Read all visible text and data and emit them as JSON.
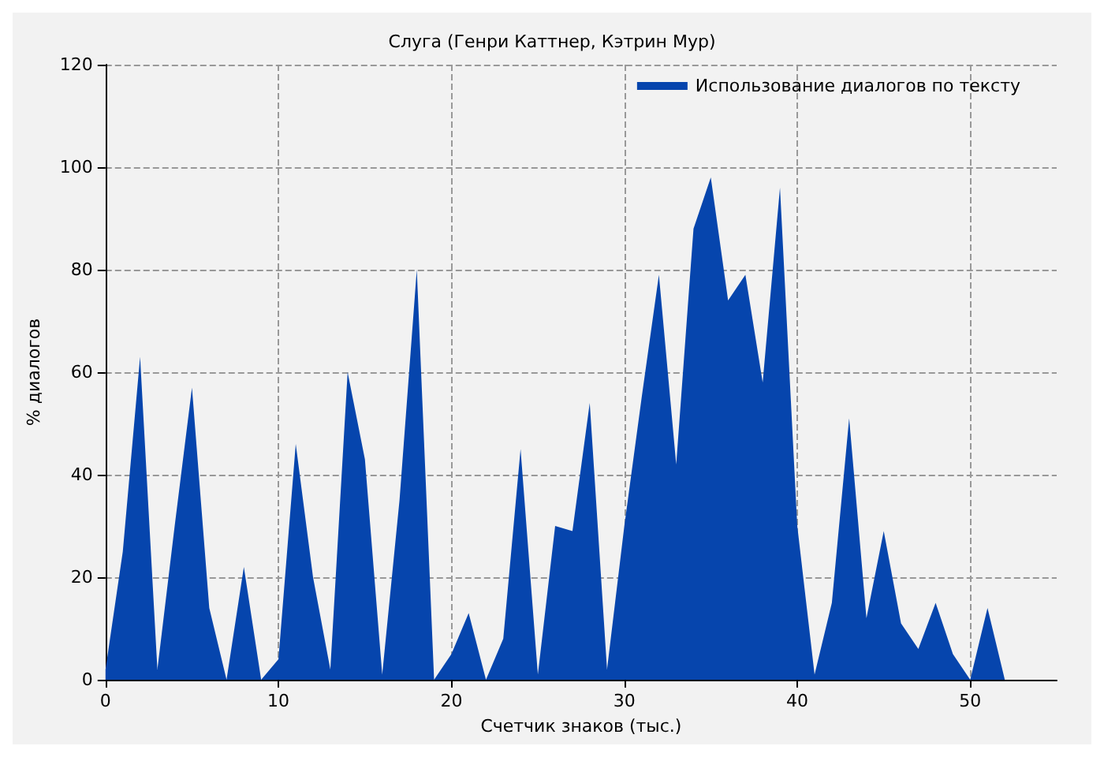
{
  "chart_data": {
    "type": "area",
    "title": "Слуга (Генри Каттнер, Кэтрин Мур)",
    "xlabel": "Счетчик знаков (тыс.)",
    "ylabel": "% диалогов",
    "x": [
      0,
      1,
      2,
      3,
      4,
      5,
      6,
      7,
      8,
      9,
      10,
      11,
      12,
      13,
      14,
      15,
      16,
      17,
      18,
      19,
      20,
      21,
      22,
      23,
      24,
      25,
      26,
      27,
      28,
      29,
      30,
      31,
      32,
      33,
      34,
      35,
      36,
      37,
      38,
      39,
      40,
      41,
      42,
      43,
      44,
      45,
      46,
      47,
      48,
      49,
      50,
      51,
      52
    ],
    "series": [
      {
        "name": "Использование диалогов по тексту",
        "color": "#0645ad",
        "values": [
          2,
          25,
          63,
          2,
          30,
          57,
          14,
          0,
          22,
          0,
          4,
          46,
          20,
          2,
          60,
          43,
          1,
          35,
          80,
          0,
          5,
          13,
          0,
          8,
          45,
          1,
          30,
          29,
          54,
          2,
          30,
          55,
          79,
          42,
          88,
          98,
          74,
          79,
          58,
          96,
          30,
          1,
          15,
          51,
          12,
          29,
          11,
          6,
          15,
          5,
          0,
          14,
          0
        ]
      }
    ],
    "xlim": [
      0,
      55
    ],
    "xticks": [
      0,
      10,
      20,
      30,
      40,
      50
    ],
    "ylim": [
      0,
      120
    ],
    "yticks": [
      0,
      20,
      40,
      60,
      80,
      100,
      120
    ],
    "grid": true,
    "legend": "top right"
  }
}
